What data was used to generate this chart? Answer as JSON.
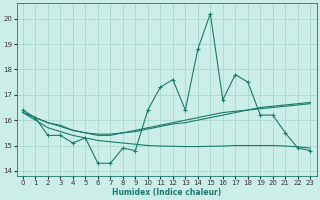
{
  "xlabel": "Humidex (Indice chaleur)",
  "bg_color": "#cceee8",
  "grid_color": "#aad8d0",
  "line_color": "#1a7a6e",
  "xlim": [
    -0.5,
    23.5
  ],
  "ylim": [
    13.8,
    20.6
  ],
  "yticks": [
    14,
    15,
    16,
    17,
    18,
    19,
    20
  ],
  "xticks": [
    0,
    1,
    2,
    3,
    4,
    5,
    6,
    7,
    8,
    9,
    10,
    11,
    12,
    13,
    14,
    15,
    16,
    17,
    18,
    19,
    20,
    21,
    22,
    23
  ],
  "series1_x": [
    0,
    1,
    2,
    3,
    4,
    5,
    6,
    7,
    8,
    9,
    10,
    11,
    12,
    13,
    14,
    15,
    16,
    17,
    18,
    19,
    20,
    21,
    22,
    23
  ],
  "series1_y": [
    16.4,
    16.1,
    15.4,
    15.4,
    15.1,
    15.3,
    14.3,
    14.3,
    14.9,
    14.8,
    16.4,
    17.3,
    17.6,
    16.4,
    18.8,
    20.2,
    16.8,
    17.8,
    17.5,
    16.2,
    16.2,
    15.5,
    14.9,
    14.8
  ],
  "smooth1_x": [
    0,
    1,
    2,
    3,
    4,
    5,
    6,
    7,
    8,
    9,
    10,
    11,
    12,
    13,
    14,
    15,
    16,
    17,
    18,
    19,
    20,
    21,
    22,
    23
  ],
  "smooth1_y": [
    16.3,
    16.1,
    15.9,
    15.8,
    15.6,
    15.5,
    15.4,
    15.4,
    15.5,
    15.6,
    15.7,
    15.8,
    15.9,
    16.0,
    16.1,
    16.2,
    16.3,
    16.35,
    16.4,
    16.45,
    16.5,
    16.55,
    16.6,
    16.65
  ],
  "smooth2_x": [
    0,
    1,
    2,
    3,
    4,
    5,
    6,
    7,
    8,
    9,
    10,
    11,
    12,
    13,
    14,
    15,
    16,
    17,
    18,
    19,
    20,
    21,
    22,
    23
  ],
  "smooth2_y": [
    16.3,
    16.0,
    15.7,
    15.55,
    15.4,
    15.3,
    15.2,
    15.15,
    15.1,
    15.05,
    15.0,
    14.98,
    14.97,
    14.96,
    14.96,
    14.97,
    14.98,
    15.0,
    15.0,
    15.0,
    15.0,
    14.98,
    14.95,
    14.9
  ],
  "smooth3_x": [
    0,
    1,
    2,
    3,
    4,
    5,
    6,
    7,
    8,
    9,
    10,
    11,
    12,
    13,
    14,
    15,
    16,
    17,
    18,
    19,
    20,
    21,
    22,
    23
  ],
  "smooth3_y": [
    16.3,
    16.1,
    15.9,
    15.75,
    15.6,
    15.5,
    15.45,
    15.45,
    15.5,
    15.55,
    15.65,
    15.75,
    15.85,
    15.9,
    16.0,
    16.1,
    16.2,
    16.3,
    16.4,
    16.5,
    16.55,
    16.6,
    16.65,
    16.7
  ]
}
